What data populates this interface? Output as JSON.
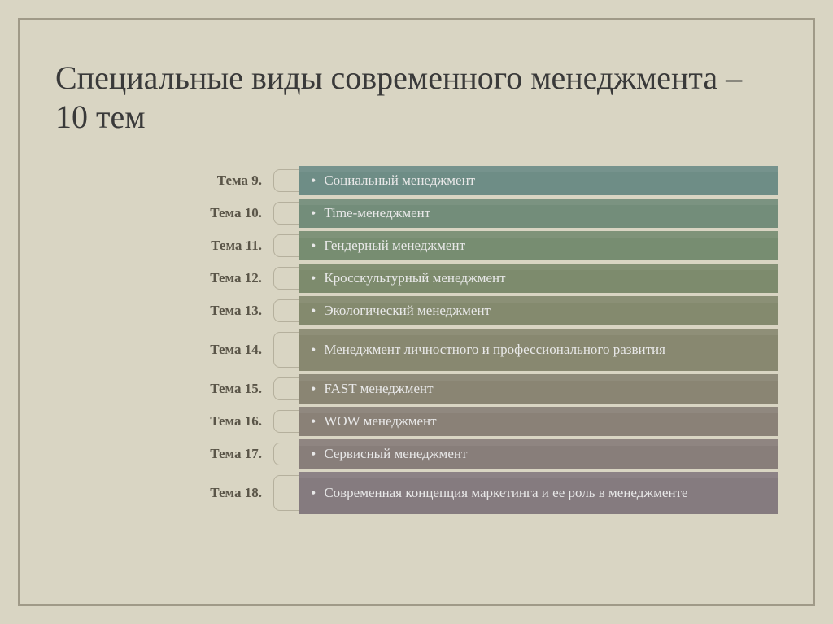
{
  "title": "Специальные виды современного менеджмента – 10 тем",
  "label_color": "#5a5548",
  "text_color": "#e8e8e8",
  "items": [
    {
      "label": "Тема 9.",
      "text": "Социальный менеджмент",
      "color": "#6e8d86",
      "double": false
    },
    {
      "label": "Тема 10.",
      "text": "Time-менеджмент",
      "color": "#738d7a",
      "double": false
    },
    {
      "label": "Тема 11.",
      "text": "Гендерный менеджмент",
      "color": "#778d71",
      "double": false
    },
    {
      "label": "Тема 12.",
      "text": "Кросскультурный менеджмент",
      "color": "#7d8b6d",
      "double": false
    },
    {
      "label": "Тема 13.",
      "text": "Экологический менеджмент",
      "color": "#848a6e",
      "double": false
    },
    {
      "label": "Тема 14.",
      "text": "Менеджмент личностного и профессионального развития",
      "color": "#888870",
      "double": true
    },
    {
      "label": "Тема 15.",
      "text": "FAST менеджмент",
      "color": "#8a8573",
      "double": false
    },
    {
      "label": "Тема 16.",
      "text": "WOW менеджмент",
      "color": "#8a8177",
      "double": false
    },
    {
      "label": "Тема 17.",
      "text": "Сервисный менеджмент",
      "color": "#887e7a",
      "double": false
    },
    {
      "label": "Тема 18.",
      "text": "Современная концепция маркетинга и ее роль в менеджменте",
      "color": "#857b7f",
      "double": true
    }
  ],
  "frame_border_color": "#a09a88",
  "background_color": "#d9d5c3",
  "connector_color": "#b5b09d",
  "title_fontsize": 40,
  "label_fontsize": 17,
  "text_fontsize": 17
}
